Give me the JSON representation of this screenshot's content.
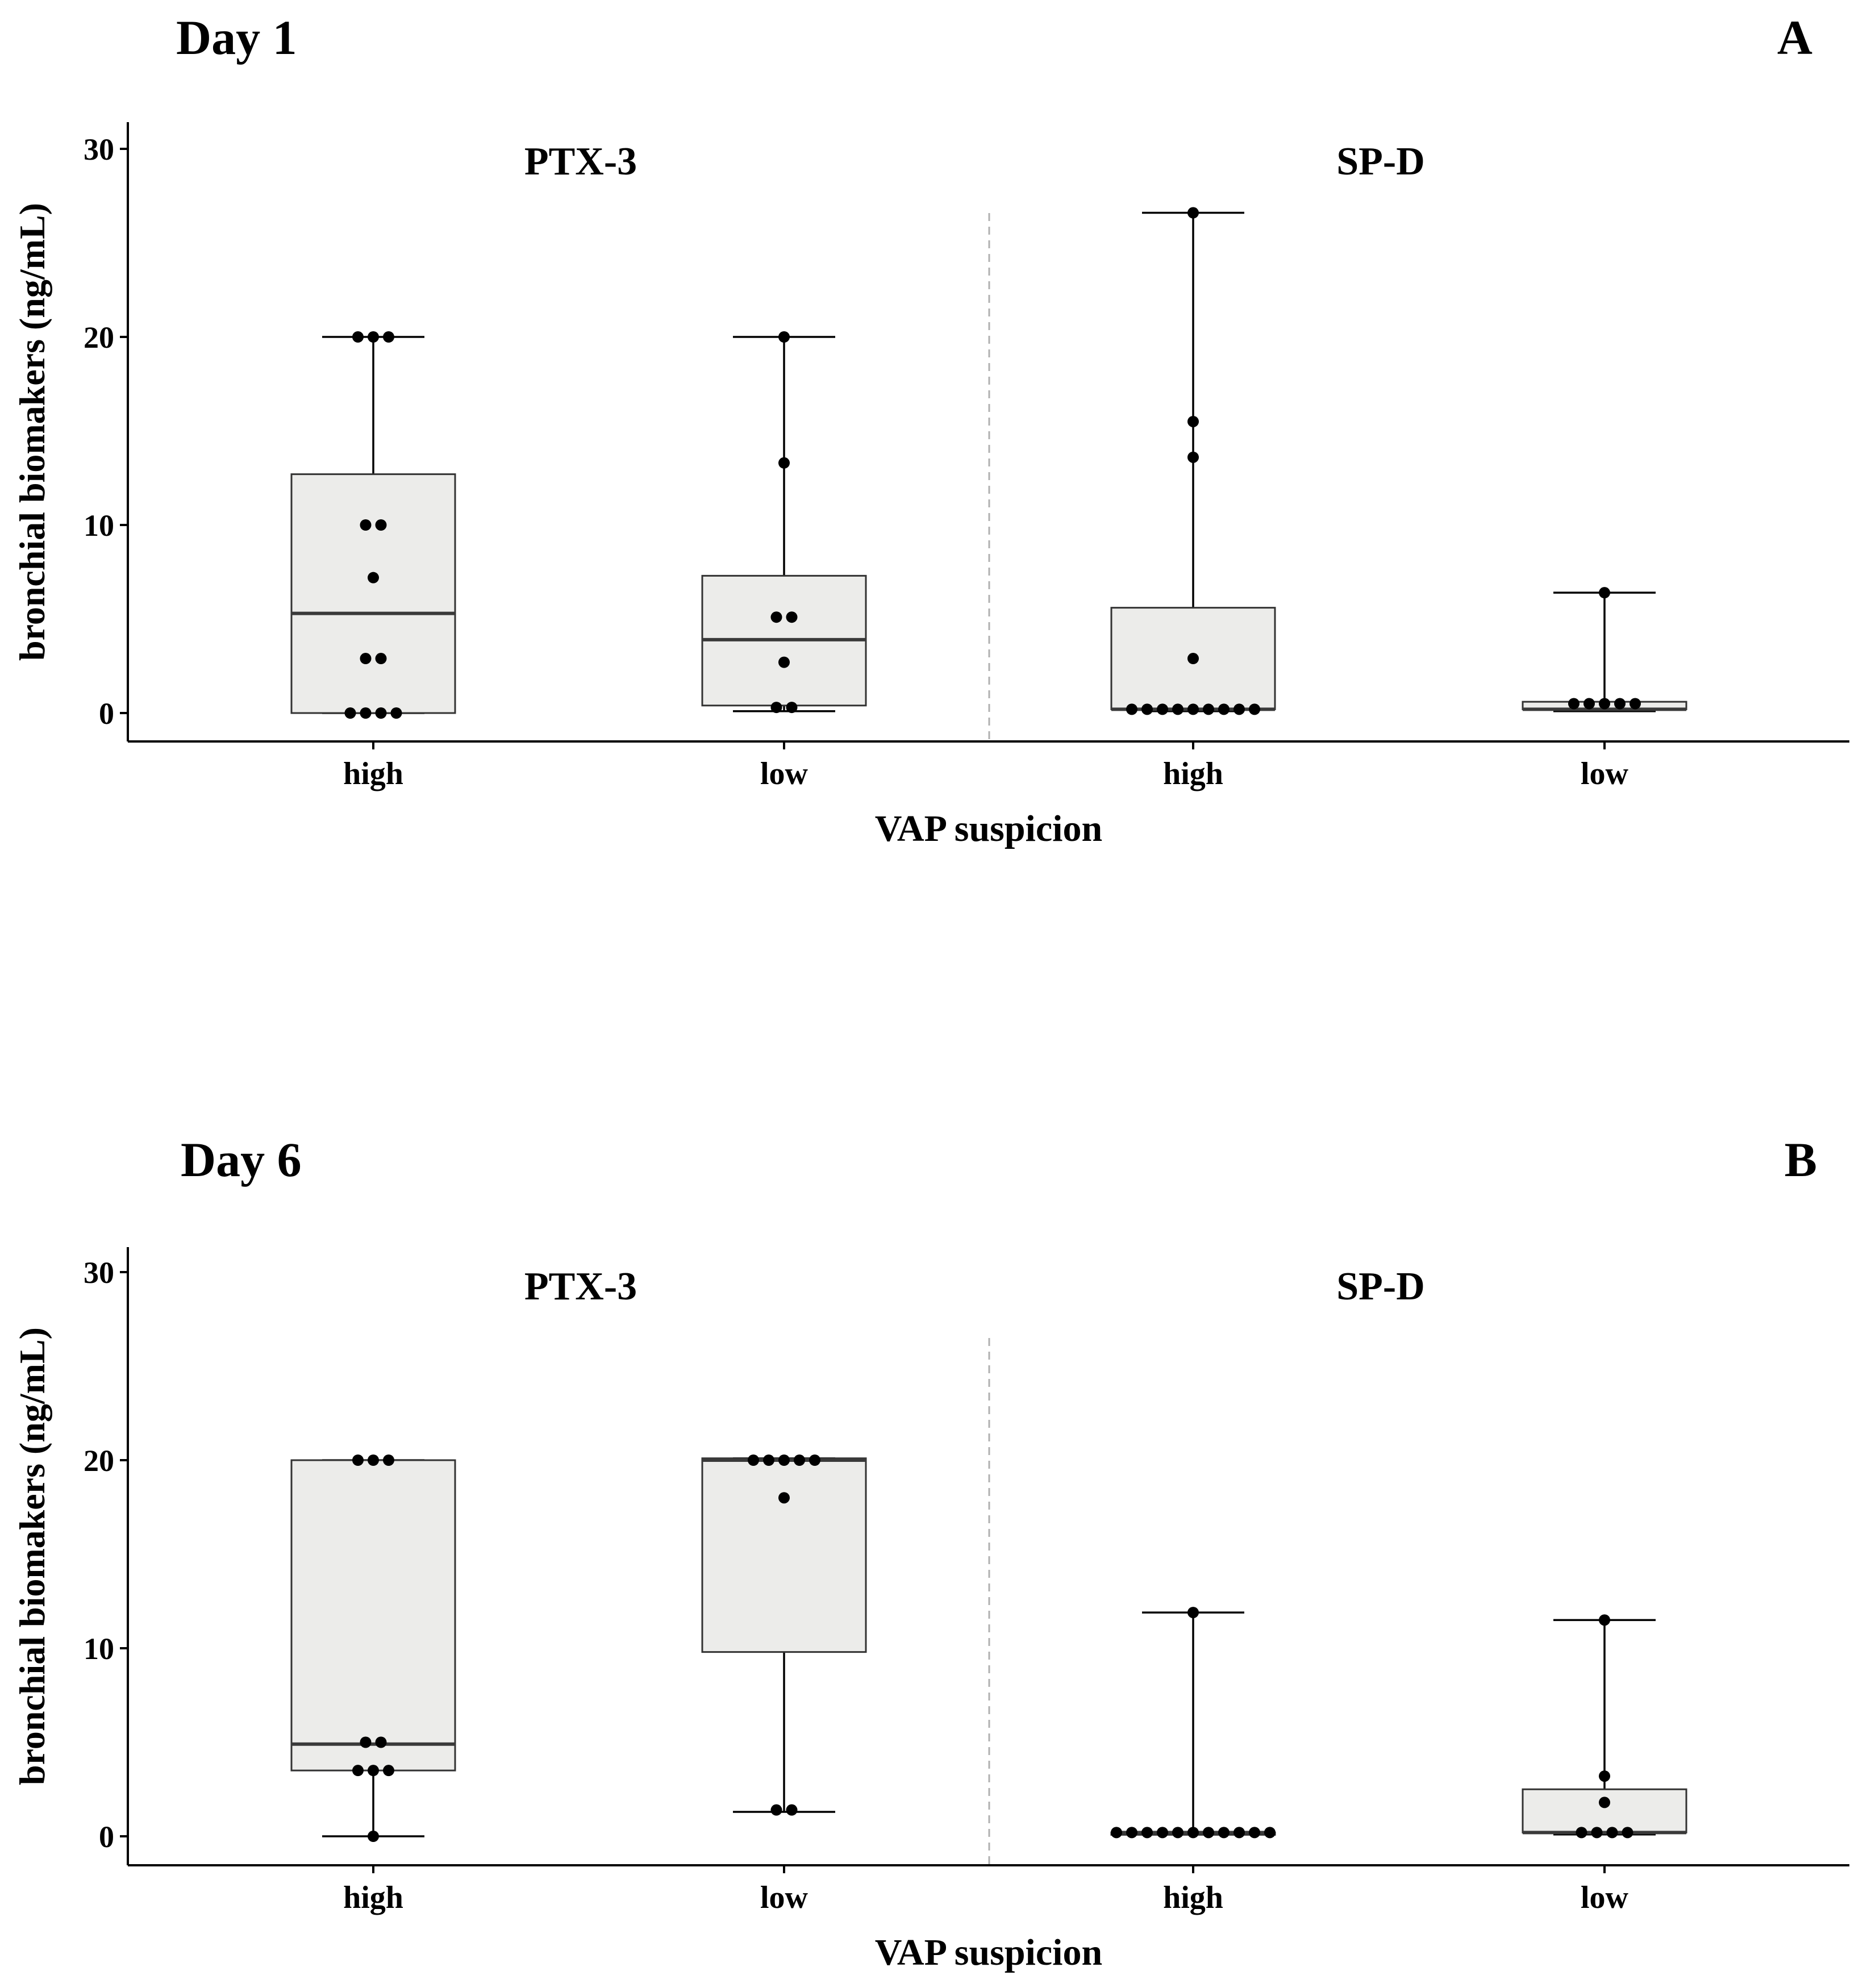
{
  "chart_data": [
    {
      "type": "box",
      "title": "Day 1",
      "panel": "A",
      "xlabel": "VAP suspicion",
      "ylabel": "bronchial biomakers  (ng/mL)",
      "ylim": [
        0,
        30
      ],
      "yticks": [
        "0",
        "10",
        "20",
        "30"
      ],
      "facets": [
        {
          "label": "PTX-3",
          "groups": [
            {
              "category": "high",
              "whisker_low": 0,
              "q1": 0,
              "median": 5.3,
              "q3": 12.7,
              "whisker_high": 20,
              "points": [
                20,
                20,
                20,
                10,
                10,
                7.2,
                2.9,
                2.9,
                0,
                0,
                0,
                0
              ]
            },
            {
              "category": "low",
              "whisker_low": 0.1,
              "q1": 0.4,
              "median": 3.9,
              "q3": 7.3,
              "whisker_high": 20,
              "points": [
                20,
                13.3,
                5.1,
                5.1,
                2.7,
                0.3,
                0.3
              ]
            }
          ]
        },
        {
          "label": "SP-D",
          "groups": [
            {
              "category": "high",
              "whisker_low": 0.1,
              "q1": 0.2,
              "median": 0.2,
              "q3": 5.6,
              "whisker_high": 26.6,
              "points": [
                26.6,
                15.5,
                13.6,
                2.9,
                0.2,
                0.2,
                0.2,
                0.2,
                0.2,
                0.2,
                0.2,
                0.2,
                0.2
              ]
            },
            {
              "category": "low",
              "whisker_low": 0.1,
              "q1": 0.2,
              "median": 0.2,
              "q3": 0.6,
              "whisker_high": 6.4,
              "points": [
                6.4,
                0.5,
                0.5,
                0.5,
                0.5,
                0.5
              ]
            }
          ]
        }
      ]
    },
    {
      "type": "box",
      "title": "Day 6",
      "panel": "B",
      "xlabel": "VAP suspicion",
      "ylabel": "bronchial biomakers  (ng/mL)",
      "ylim": [
        0,
        30
      ],
      "yticks": [
        "0",
        "10",
        "20",
        "30"
      ],
      "facets": [
        {
          "label": "PTX-3",
          "groups": [
            {
              "category": "high",
              "whisker_low": 0,
              "q1": 3.5,
              "median": 4.9,
              "q3": 20,
              "whisker_high": 20,
              "points": [
                20,
                20,
                20,
                5.0,
                5.0,
                3.5,
                3.5,
                3.5,
                0
              ]
            },
            {
              "category": "low",
              "whisker_low": 1.3,
              "q1": 9.8,
              "median": 20,
              "q3": 20.1,
              "whisker_high": 20.1,
              "points": [
                20,
                20,
                20,
                20,
                20,
                18,
                1.4,
                1.4
              ]
            }
          ]
        },
        {
          "label": "SP-D",
          "groups": [
            {
              "category": "high",
              "whisker_low": 0.2,
              "q1": 0.2,
              "median": 0.2,
              "q3": 0.2,
              "whisker_high": 11.9,
              "points": [
                11.9,
                0.2,
                0.2,
                0.2,
                0.2,
                0.2,
                0.2,
                0.2,
                0.2,
                0.2,
                0.2,
                0.2
              ]
            },
            {
              "category": "low",
              "whisker_low": 0.1,
              "q1": 0.2,
              "median": 0.2,
              "q3": 2.5,
              "whisker_high": 11.5,
              "points": [
                11.5,
                3.2,
                1.8,
                0.2,
                0.2,
                0.2,
                0.2
              ]
            }
          ]
        }
      ]
    }
  ]
}
